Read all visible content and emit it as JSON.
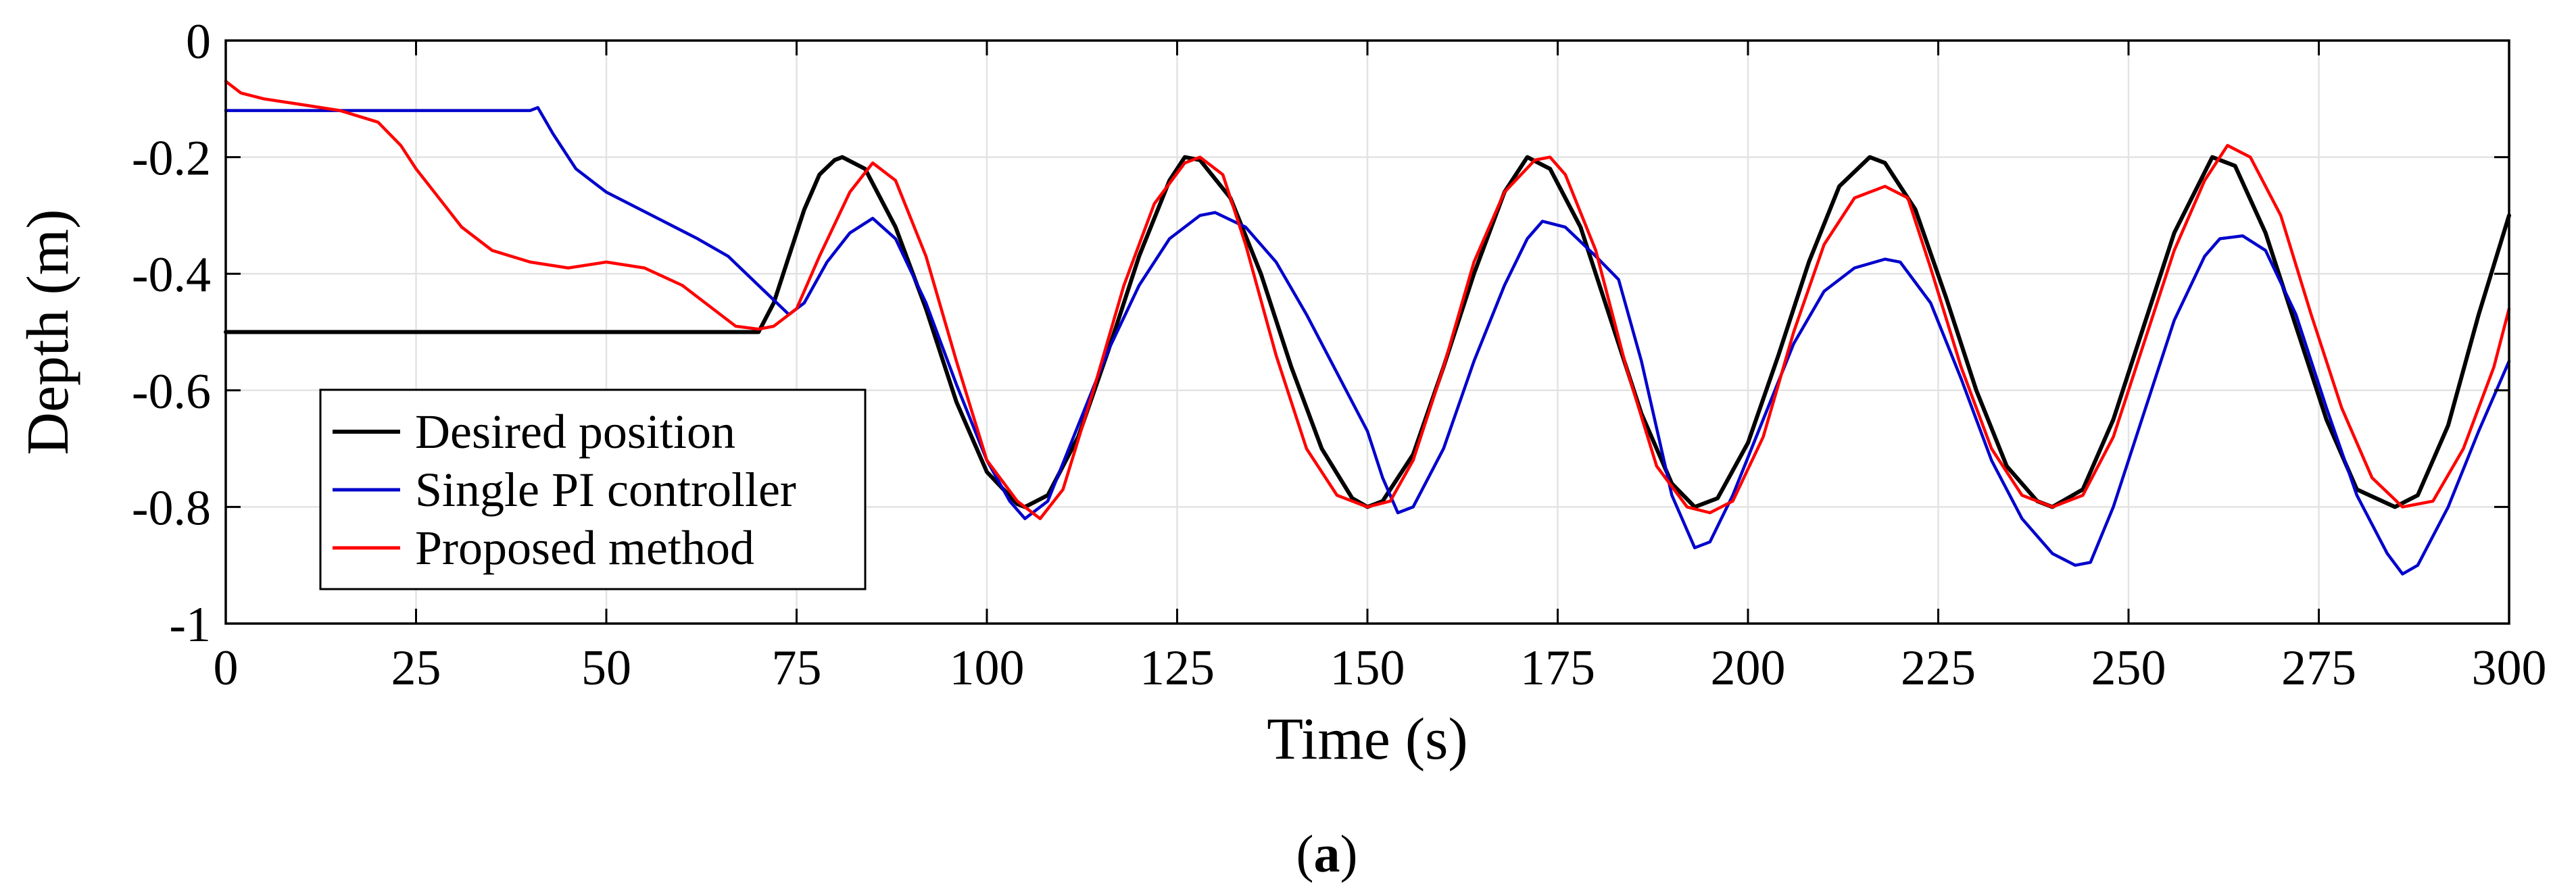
{
  "chart_data": {
    "type": "line",
    "title": "",
    "xlabel": "Time (s)",
    "ylabel": "Depth (m)",
    "xlim": [
      0,
      300
    ],
    "ylim": [
      -1,
      0
    ],
    "grid": true,
    "legend_position": "bottom-left",
    "xticks": [
      0,
      25,
      50,
      75,
      100,
      125,
      150,
      175,
      200,
      225,
      250,
      275,
      300
    ],
    "yticks": [
      0,
      -0.2,
      -0.4,
      -0.6,
      -0.8,
      -1
    ],
    "xtick_labels": [
      "0",
      "25",
      "50",
      "75",
      "100",
      "125",
      "150",
      "175",
      "200",
      "225",
      "250",
      "275",
      "300"
    ],
    "ytick_labels": [
      "0",
      "-0.2",
      "-0.4",
      "-0.6",
      "-0.8",
      "-1"
    ],
    "series": [
      {
        "name": "Desired position",
        "color": "#000000",
        "x": [
          0,
          70,
          72,
          74,
          76,
          78,
          80,
          81,
          84,
          88,
          92,
          96,
          100,
          104,
          105,
          108,
          112,
          116,
          120,
          124,
          126,
          128,
          132,
          136,
          140,
          144,
          148,
          150,
          152,
          156,
          160,
          164,
          168,
          171,
          174,
          178,
          182,
          186,
          190,
          193,
          196,
          200,
          204,
          208,
          212,
          216,
          218,
          222,
          226,
          230,
          234,
          238,
          240,
          244,
          248,
          252,
          256,
          261,
          264,
          268,
          272,
          276,
          280,
          285,
          288,
          292,
          296,
          300
        ],
        "y": [
          -0.5,
          -0.5,
          -0.45,
          -0.37,
          -0.29,
          -0.23,
          -0.205,
          -0.2,
          -0.22,
          -0.32,
          -0.46,
          -0.62,
          -0.74,
          -0.795,
          -0.8,
          -0.78,
          -0.68,
          -0.53,
          -0.37,
          -0.24,
          -0.2,
          -0.205,
          -0.27,
          -0.4,
          -0.56,
          -0.7,
          -0.785,
          -0.8,
          -0.79,
          -0.71,
          -0.56,
          -0.4,
          -0.26,
          -0.2,
          -0.22,
          -0.32,
          -0.48,
          -0.64,
          -0.76,
          -0.8,
          -0.785,
          -0.69,
          -0.54,
          -0.38,
          -0.25,
          -0.2,
          -0.21,
          -0.29,
          -0.44,
          -0.6,
          -0.73,
          -0.79,
          -0.8,
          -0.77,
          -0.65,
          -0.49,
          -0.33,
          -0.2,
          -0.215,
          -0.33,
          -0.49,
          -0.65,
          -0.77,
          -0.8,
          -0.78,
          -0.66,
          -0.47,
          -0.3
        ]
      },
      {
        "name": "Single PI controller",
        "color": "#0000cc",
        "x": [
          0,
          40,
          41,
          43,
          46,
          50,
          56,
          62,
          66,
          70,
          74,
          76,
          79,
          82,
          85,
          88,
          92,
          96,
          100,
          103,
          105,
          108,
          112,
          116,
          120,
          124,
          128,
          130,
          134,
          138,
          142,
          146,
          150,
          152,
          154,
          156,
          160,
          164,
          168,
          171,
          173,
          176,
          180,
          183,
          186,
          190,
          193,
          195,
          198,
          202,
          206,
          210,
          214,
          218,
          220,
          224,
          228,
          232,
          236,
          240,
          243,
          245,
          248,
          252,
          256,
          260,
          262,
          265,
          268,
          272,
          276,
          280,
          284,
          286,
          288,
          292,
          296,
          300
        ],
        "y": [
          -0.12,
          -0.12,
          -0.115,
          -0.16,
          -0.22,
          -0.26,
          -0.3,
          -0.34,
          -0.37,
          -0.42,
          -0.47,
          -0.45,
          -0.38,
          -0.33,
          -0.305,
          -0.34,
          -0.45,
          -0.59,
          -0.72,
          -0.79,
          -0.82,
          -0.79,
          -0.66,
          -0.53,
          -0.42,
          -0.34,
          -0.3,
          -0.295,
          -0.32,
          -0.38,
          -0.47,
          -0.57,
          -0.67,
          -0.75,
          -0.81,
          -0.8,
          -0.7,
          -0.55,
          -0.42,
          -0.34,
          -0.31,
          -0.32,
          -0.37,
          -0.41,
          -0.55,
          -0.78,
          -0.87,
          -0.86,
          -0.78,
          -0.65,
          -0.52,
          -0.43,
          -0.39,
          -0.375,
          -0.38,
          -0.45,
          -0.58,
          -0.72,
          -0.82,
          -0.88,
          -0.9,
          -0.895,
          -0.8,
          -0.64,
          -0.48,
          -0.37,
          -0.34,
          -0.335,
          -0.36,
          -0.47,
          -0.63,
          -0.78,
          -0.88,
          -0.915,
          -0.9,
          -0.8,
          -0.67,
          -0.55
        ]
      },
      {
        "name": "Proposed method",
        "color": "#ff0000",
        "x": [
          0,
          2,
          5,
          10,
          15,
          20,
          23,
          25,
          28,
          31,
          35,
          40,
          45,
          50,
          55,
          60,
          64,
          67,
          70,
          72,
          75,
          78,
          82,
          85,
          88,
          92,
          96,
          100,
          104,
          107,
          110,
          114,
          118,
          122,
          126,
          128,
          131,
          134,
          138,
          142,
          146,
          150,
          153,
          156,
          160,
          164,
          168,
          172,
          174,
          176,
          180,
          184,
          188,
          192,
          195,
          198,
          202,
          206,
          210,
          214,
          218,
          221,
          224,
          228,
          232,
          236,
          240,
          244,
          248,
          252,
          256,
          260,
          263,
          266,
          270,
          274,
          278,
          282,
          286,
          290,
          294,
          298,
          300
        ],
        "y": [
          -0.07,
          -0.09,
          -0.1,
          -0.11,
          -0.12,
          -0.14,
          -0.18,
          -0.22,
          -0.27,
          -0.32,
          -0.36,
          -0.38,
          -0.39,
          -0.38,
          -0.39,
          -0.42,
          -0.46,
          -0.49,
          -0.495,
          -0.49,
          -0.46,
          -0.37,
          -0.26,
          -0.21,
          -0.24,
          -0.37,
          -0.55,
          -0.72,
          -0.79,
          -0.82,
          -0.77,
          -0.6,
          -0.42,
          -0.28,
          -0.21,
          -0.2,
          -0.23,
          -0.35,
          -0.54,
          -0.7,
          -0.78,
          -0.8,
          -0.79,
          -0.72,
          -0.56,
          -0.38,
          -0.26,
          -0.205,
          -0.2,
          -0.23,
          -0.36,
          -0.56,
          -0.73,
          -0.8,
          -0.81,
          -0.79,
          -0.68,
          -0.5,
          -0.35,
          -0.27,
          -0.25,
          -0.27,
          -0.39,
          -0.56,
          -0.7,
          -0.78,
          -0.8,
          -0.78,
          -0.68,
          -0.52,
          -0.36,
          -0.24,
          -0.18,
          -0.2,
          -0.3,
          -0.47,
          -0.63,
          -0.75,
          -0.8,
          -0.79,
          -0.7,
          -0.56,
          -0.46
        ]
      }
    ]
  },
  "caption": {
    "open": "(",
    "letter": "a",
    "close": ")"
  }
}
